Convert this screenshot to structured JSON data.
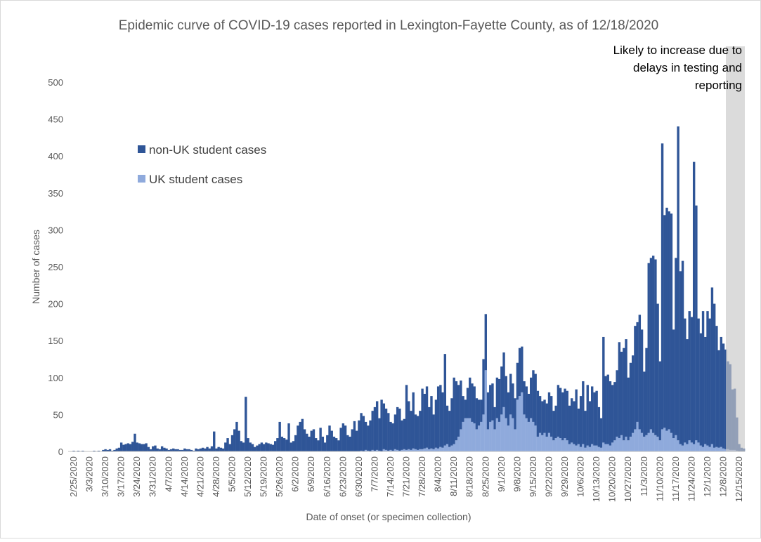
{
  "chart_data": {
    "type": "bar",
    "stacked": true,
    "title": "Epidemic curve of COVID-19 cases reported in Lexington-Fayette County, as of 12/18/2020",
    "x_label": "Date of onset (or specimen collection)",
    "y_label": "Number of cases",
    "annotation": [
      "Likely to increase due to",
      "delays in testing and",
      "reporting"
    ],
    "ylim": [
      0,
      500
    ],
    "yticks": [
      0,
      50,
      100,
      150,
      200,
      250,
      300,
      350,
      400,
      450,
      500
    ],
    "grid": false,
    "legend": "upper left",
    "categories": [
      "2/25/2020",
      null,
      null,
      null,
      null,
      null,
      null,
      "3/3/2020",
      null,
      null,
      null,
      null,
      null,
      null,
      "3/10/2020",
      null,
      null,
      null,
      null,
      null,
      null,
      "3/17/2020",
      null,
      null,
      null,
      null,
      null,
      null,
      "3/24/2020",
      null,
      null,
      null,
      null,
      null,
      null,
      "3/31/2020",
      null,
      null,
      null,
      null,
      null,
      null,
      "4/7/2020",
      null,
      null,
      null,
      null,
      null,
      null,
      "4/14/2020",
      null,
      null,
      null,
      null,
      null,
      null,
      "4/21/2020",
      null,
      null,
      null,
      null,
      null,
      null,
      "4/28/2020",
      null,
      null,
      null,
      null,
      null,
      null,
      "5/5/2020",
      null,
      null,
      null,
      null,
      null,
      null,
      "5/12/2020",
      null,
      null,
      null,
      null,
      null,
      null,
      "5/19/2020",
      null,
      null,
      null,
      null,
      null,
      null,
      "5/26/2020",
      null,
      null,
      null,
      null,
      null,
      null,
      "6/2/2020",
      null,
      null,
      null,
      null,
      null,
      null,
      "6/9/2020",
      null,
      null,
      null,
      null,
      null,
      null,
      "6/16/2020",
      null,
      null,
      null,
      null,
      null,
      null,
      "6/23/2020",
      null,
      null,
      null,
      null,
      null,
      null,
      "6/30/2020",
      null,
      null,
      null,
      null,
      null,
      null,
      "7/7/2020",
      null,
      null,
      null,
      null,
      null,
      null,
      "7/14/2020",
      null,
      null,
      null,
      null,
      null,
      null,
      "7/21/2020",
      null,
      null,
      null,
      null,
      null,
      null,
      "7/28/2020",
      null,
      null,
      null,
      null,
      null,
      null,
      "8/4/2020",
      null,
      null,
      null,
      null,
      null,
      null,
      "8/11/2020",
      null,
      null,
      null,
      null,
      null,
      null,
      "8/18/2020",
      null,
      null,
      null,
      null,
      null,
      null,
      "8/25/2020",
      null,
      null,
      null,
      null,
      null,
      null,
      "9/1/2020",
      null,
      null,
      null,
      null,
      null,
      null,
      "9/8/2020",
      null,
      null,
      null,
      null,
      null,
      null,
      "9/15/2020",
      null,
      null,
      null,
      null,
      null,
      null,
      "9/22/2020",
      null,
      null,
      null,
      null,
      null,
      null,
      "9/29/2020",
      null,
      null,
      null,
      null,
      null,
      null,
      "10/6/2020",
      null,
      null,
      null,
      null,
      null,
      null,
      "10/13/2020",
      null,
      null,
      null,
      null,
      null,
      null,
      "10/20/2020",
      null,
      null,
      null,
      null,
      null,
      null,
      "10/27/2020",
      null,
      null,
      null,
      null,
      null,
      null,
      "11/3/2020",
      null,
      null,
      null,
      null,
      null,
      null,
      "11/10/2020",
      null,
      null,
      null,
      null,
      null,
      null,
      "11/17/2020",
      null,
      null,
      null,
      null,
      null,
      null,
      "11/24/2020",
      null,
      null,
      null,
      null,
      null,
      null,
      "12/1/2020",
      null,
      null,
      null,
      null,
      null,
      null,
      "12/8/2020",
      null,
      null,
      null,
      null,
      null,
      null,
      "12/15/2020",
      null,
      null
    ],
    "series": [
      {
        "name": "UK student cases",
        "color": "#8faadc",
        "values": [
          0,
          0,
          0,
          0,
          0,
          0,
          0,
          0,
          0,
          0,
          0,
          0,
          0,
          0,
          0,
          0,
          0,
          0,
          0,
          0,
          0,
          0,
          0,
          0,
          0,
          0,
          0,
          0,
          0,
          0,
          0,
          0,
          0,
          0,
          0,
          0,
          0,
          0,
          0,
          0,
          0,
          0,
          0,
          0,
          0,
          0,
          0,
          0,
          0,
          0,
          0,
          0,
          0,
          0,
          0,
          0,
          0,
          0,
          0,
          0,
          0,
          0,
          0,
          0,
          0,
          0,
          0,
          0,
          0,
          0,
          0,
          0,
          0,
          0,
          0,
          0,
          0,
          0,
          0,
          0,
          0,
          0,
          0,
          0,
          0,
          0,
          0,
          0,
          0,
          0,
          0,
          0,
          0,
          0,
          0,
          0,
          0,
          0,
          0,
          0,
          0,
          0,
          0,
          0,
          0,
          0,
          0,
          0,
          0,
          0,
          0,
          0,
          0,
          0,
          0,
          0,
          0,
          0,
          0,
          0,
          0,
          0,
          0,
          0,
          0,
          0,
          0,
          1,
          0,
          2,
          1,
          0,
          2,
          1,
          2,
          1,
          0,
          3,
          2,
          1,
          2,
          1,
          3,
          2,
          1,
          2,
          3,
          2,
          3,
          2,
          4,
          3,
          2,
          3,
          3,
          4,
          5,
          3,
          4,
          3,
          5,
          4,
          6,
          5,
          8,
          10,
          6,
          8,
          10,
          15,
          20,
          30,
          40,
          45,
          45,
          45,
          40,
          38,
          30,
          35,
          40,
          50,
          110,
          30,
          40,
          42,
          30,
          45,
          40,
          50,
          60,
          45,
          35,
          50,
          45,
          30,
          70,
          75,
          80,
          50,
          45,
          40,
          45,
          40,
          35,
          20,
          25,
          22,
          25,
          20,
          25,
          20,
          15,
          18,
          20,
          18,
          15,
          18,
          15,
          10,
          12,
          10,
          8,
          10,
          6,
          10,
          5,
          8,
          6,
          10,
          8,
          8,
          6,
          5,
          12,
          10,
          10,
          8,
          12,
          15,
          20,
          18,
          22,
          15,
          20,
          15,
          20,
          25,
          30,
          40,
          30,
          25,
          20,
          22,
          25,
          30,
          25,
          22,
          20,
          15,
          30,
          32,
          28,
          30,
          25,
          18,
          22,
          15,
          10,
          8,
          12,
          10,
          15,
          12,
          10,
          15,
          12,
          8,
          6,
          10,
          8,
          6,
          10,
          5,
          6,
          5,
          6,
          4,
          3,
          3,
          2,
          2,
          2,
          1,
          0,
          0,
          0
        ]
      },
      {
        "name": "non-UK student cases",
        "color": "#2f5597",
        "values": [
          1,
          0,
          1,
          0,
          1,
          0,
          0,
          0,
          0,
          1,
          0,
          1,
          0,
          2,
          3,
          2,
          3,
          1,
          2,
          4,
          5,
          12,
          9,
          10,
          11,
          10,
          13,
          24,
          12,
          11,
          10,
          10,
          11,
          6,
          3,
          7,
          8,
          4,
          3,
          7,
          5,
          4,
          2,
          3,
          4,
          3,
          3,
          2,
          2,
          4,
          3,
          3,
          2,
          1,
          4,
          3,
          4,
          5,
          4,
          6,
          4,
          7,
          27,
          4,
          6,
          5,
          4,
          12,
          18,
          10,
          22,
          30,
          40,
          28,
          14,
          12,
          74,
          18,
          12,
          10,
          6,
          8,
          10,
          12,
          10,
          12,
          11,
          10,
          9,
          14,
          18,
          40,
          20,
          18,
          16,
          38,
          12,
          14,
          22,
          35,
          40,
          44,
          30,
          24,
          20,
          28,
          30,
          18,
          15,
          32,
          20,
          12,
          22,
          35,
          28,
          20,
          18,
          15,
          32,
          38,
          35,
          22,
          20,
          30,
          41,
          28,
          42,
          51,
          48,
          38,
          34,
          42,
          53,
          59,
          66,
          44,
          70,
          62,
          56,
          51,
          38,
          37,
          47,
          58,
          57,
          40,
          41,
          88,
          65,
          53,
          76,
          47,
          46,
          52,
          82,
          74,
          83,
          57,
          71,
          47,
          65,
          84,
          84,
          75,
          124,
          52,
          49,
          64,
          90,
          80,
          70,
          66,
          35,
          25,
          41,
          55,
          52,
          50,
          42,
          35,
          30,
          75,
          76,
          50,
          50,
          50,
          30,
          55,
          58,
          65,
          74,
          57,
          45,
          55,
          47,
          42,
          50,
          65,
          62,
          45,
          43,
          38,
          55,
          70,
          70,
          62,
          50,
          46,
          45,
          45,
          55,
          55,
          40,
          44,
          70,
          68,
          65,
          67,
          67,
          52,
          60,
          58,
          76,
          48,
          69,
          85,
          50,
          82,
          62,
          78,
          72,
          74,
          54,
          40,
          143,
          92,
          94,
          87,
          78,
          79,
          90,
          130,
          113,
          125,
          132,
          85,
          100,
          105,
          140,
          135,
          155,
          140,
          88,
          118,
          230,
          232,
          240,
          238,
          180,
          107,
          387,
          288,
          302,
          295,
          297,
          147,
          240,
          425,
          234,
          250,
          168,
          142,
          175,
          170,
          382,
          318,
          168,
          152,
          184,
          145,
          182,
          174,
          212,
          195,
          164,
          132,
          149,
          142,
          135,
          119,
          116,
          82,
          83,
          45,
          10,
          5,
          4
        ]
      }
    ]
  }
}
